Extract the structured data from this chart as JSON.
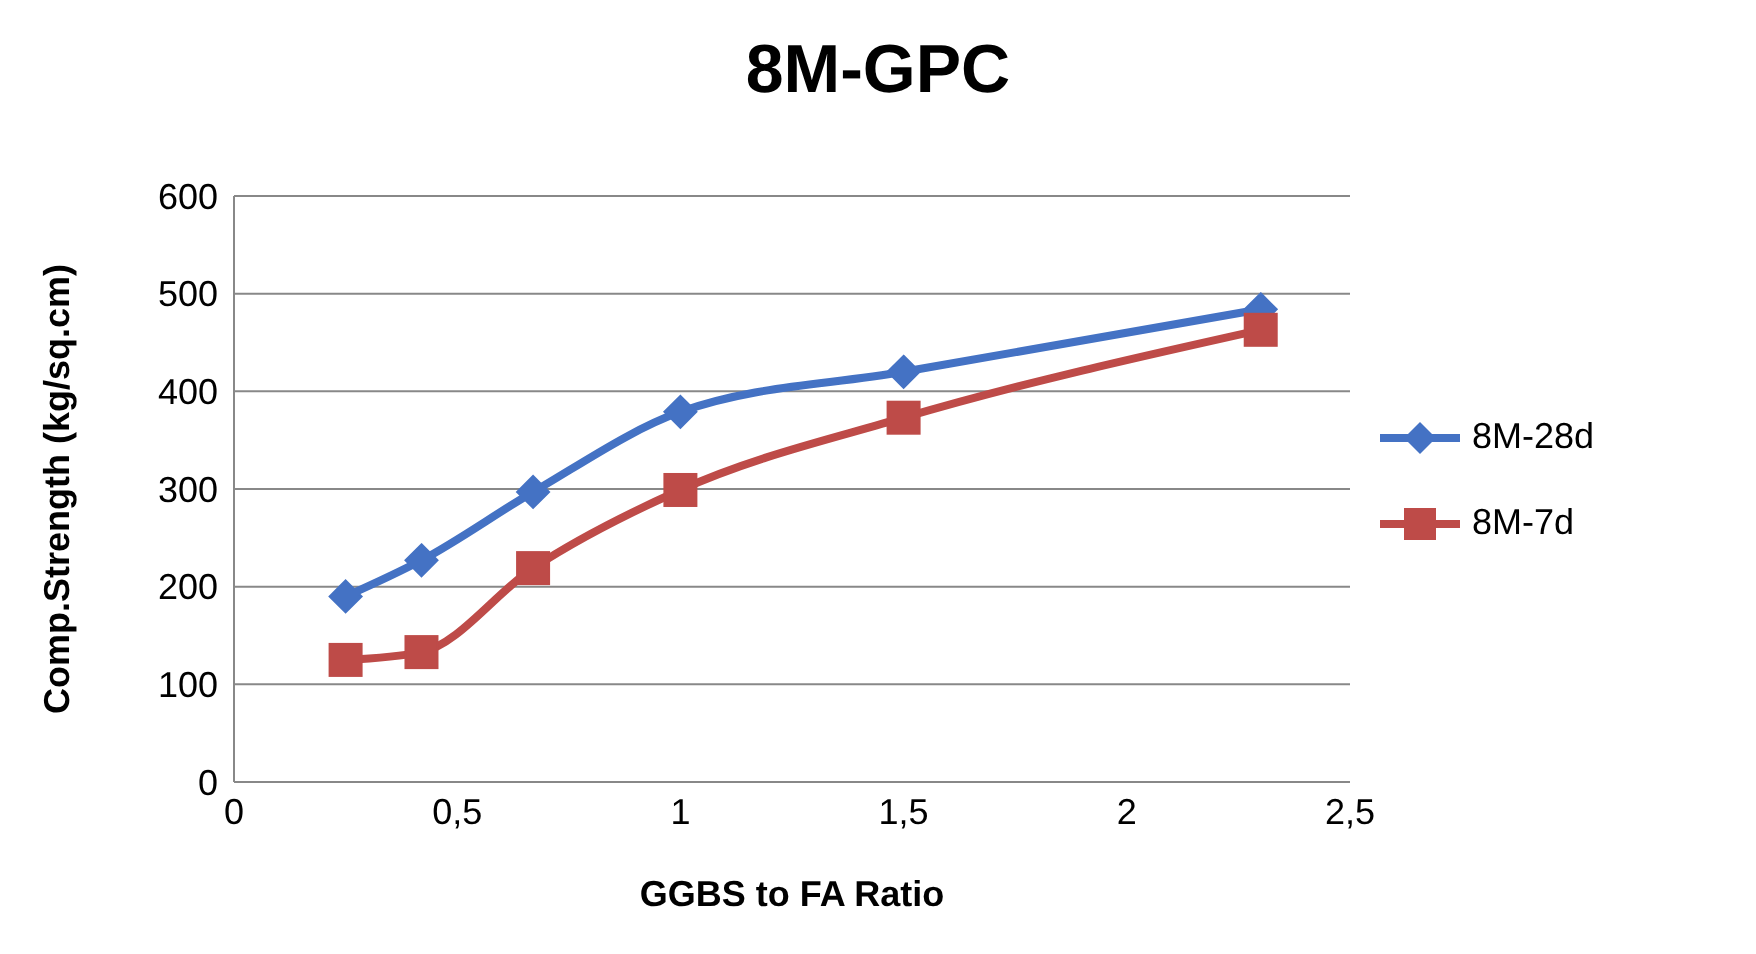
{
  "chart_data": {
    "type": "line",
    "title": "8M-GPC",
    "xlabel": "GGBS to FA Ratio",
    "ylabel": "Comp.Strength (kg/sq.cm)",
    "x": [
      0.25,
      0.42,
      0.67,
      1,
      1.5,
      2.3
    ],
    "series": [
      {
        "name": "8M-28d",
        "color": "#4472c4",
        "marker": "diamond",
        "values": [
          190,
          227,
          297,
          379,
          420,
          484
        ]
      },
      {
        "name": "8M-7d",
        "color": "#be4b48",
        "marker": "square",
        "values": [
          125,
          133,
          219,
          299,
          373,
          463
        ]
      }
    ],
    "xlim": [
      0,
      2.5
    ],
    "xticks": [
      0,
      {
        "value": 0.5,
        "label": "0,5"
      },
      1,
      {
        "value": 1.5,
        "label": "1,5"
      },
      2,
      {
        "value": 2.5,
        "label": "2,5"
      }
    ],
    "ylim": [
      0,
      600
    ],
    "yticks": [
      0,
      100,
      200,
      300,
      400,
      500,
      600
    ],
    "grid": "y",
    "legend": "right",
    "line_style": "solid"
  }
}
